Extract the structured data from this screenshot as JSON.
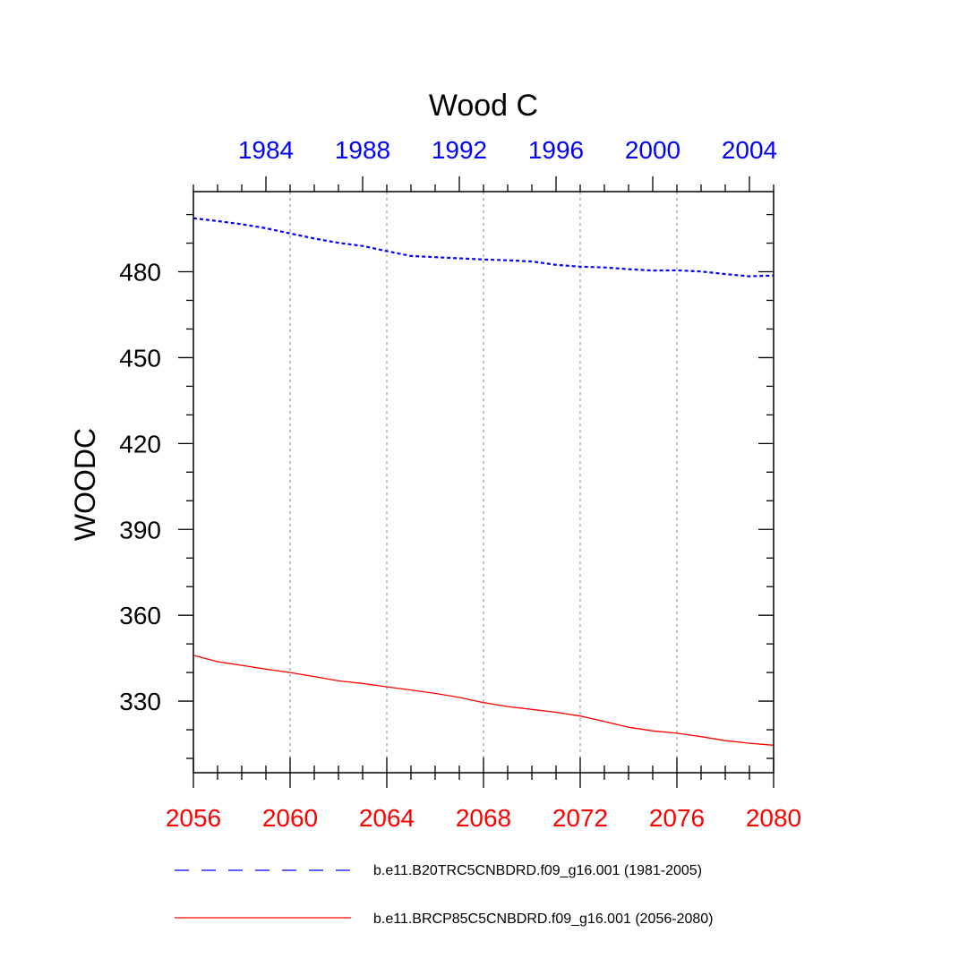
{
  "chart_data": {
    "type": "line",
    "title": "Wood C",
    "ylabel": "WOODC",
    "ylim": [
      305,
      508
    ],
    "yticks": [
      330,
      360,
      390,
      420,
      450,
      480
    ],
    "bottom_axis": {
      "range": [
        2056,
        2080
      ],
      "ticks": [
        2056,
        2060,
        2064,
        2068,
        2072,
        2076,
        2080
      ],
      "color": "#ff0000"
    },
    "top_axis": {
      "range": [
        1981,
        2005
      ],
      "ticks": [
        1984,
        1988,
        1992,
        1996,
        2000,
        2004
      ],
      "color": "#0000ff"
    },
    "grid": "vertical dotted at top-axis ticks",
    "series": [
      {
        "name": "b.e11.B20TRC5CNBDRD.f09_g16.001 (1981-2005)",
        "axis": "top",
        "color": "#0000ff",
        "style": "dashed",
        "x": [
          1981,
          1982,
          1983,
          1984,
          1985,
          1986,
          1987,
          1988,
          1989,
          1990,
          1991,
          1992,
          1993,
          1994,
          1995,
          1996,
          1997,
          1998,
          1999,
          2000,
          2001,
          2002,
          2003,
          2004,
          2005
        ],
        "values": [
          498.7,
          497.7,
          496.6,
          495.2,
          493.4,
          491.6,
          490.1,
          489.0,
          487.2,
          485.5,
          485.1,
          484.7,
          484.3,
          484.0,
          483.6,
          482.4,
          481.8,
          481.5,
          480.9,
          480.4,
          480.5,
          480.1,
          479.2,
          478.4,
          478.7
        ]
      },
      {
        "name": "b.e11.BRCP85C5CNBDRD.f09_g16.001 (2056-2080)",
        "axis": "bottom",
        "color": "#ff0000",
        "style": "solid",
        "x": [
          2056,
          2057,
          2058,
          2059,
          2060,
          2061,
          2062,
          2063,
          2064,
          2065,
          2066,
          2067,
          2068,
          2069,
          2070,
          2071,
          2072,
          2073,
          2074,
          2075,
          2076,
          2077,
          2078,
          2079,
          2080
        ],
        "values": [
          346.0,
          343.8,
          342.5,
          341.2,
          340.0,
          338.6,
          337.1,
          336.2,
          335.0,
          333.9,
          332.7,
          331.3,
          329.5,
          328.1,
          327.1,
          326.1,
          324.8,
          322.9,
          320.9,
          319.6,
          318.8,
          317.6,
          316.2,
          315.3,
          314.6
        ]
      }
    ],
    "legend": {
      "placement": "bottom"
    }
  }
}
